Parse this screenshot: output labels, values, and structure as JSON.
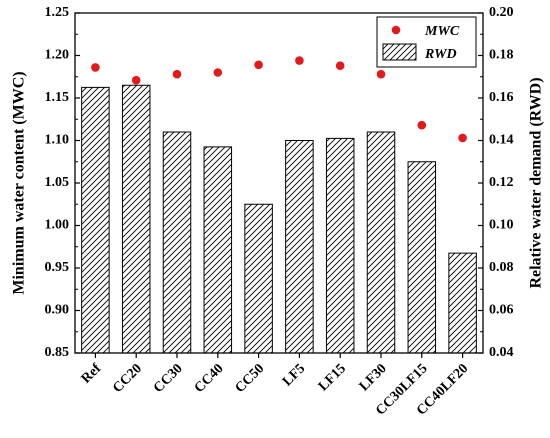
{
  "chart_data": {
    "type": "bar",
    "categories": [
      "Ref",
      "CC20",
      "CC30",
      "CC40",
      "CC50",
      "LF5",
      "LF15",
      "LF30",
      "CC30LF15",
      "CC40LF20"
    ],
    "series": [
      {
        "name": "RWD",
        "type": "bar",
        "axis": "right",
        "values": [
          0.165,
          0.166,
          0.144,
          0.137,
          0.11,
          0.14,
          0.141,
          0.144,
          0.13,
          0.087
        ]
      },
      {
        "name": "MWC",
        "type": "scatter",
        "axis": "left",
        "values": [
          1.186,
          1.171,
          1.178,
          1.18,
          1.189,
          1.194,
          1.188,
          1.178,
          1.118,
          1.103
        ]
      }
    ],
    "ylabel_left": "Minimum water content (MWC)",
    "ylabel_right": "Relative water demand (RWD)",
    "ylim_left": [
      0.85,
      1.25
    ],
    "ylim_right": [
      0.04,
      0.2
    ],
    "yticks_left": [
      "0.85",
      "0.90",
      "0.95",
      "1.00",
      "1.05",
      "1.10",
      "1.15",
      "1.20",
      "1.25"
    ],
    "yticks_right": [
      "0.04",
      "0.06",
      "0.08",
      "0.10",
      "0.12",
      "0.14",
      "0.16",
      "0.18",
      "0.20"
    ],
    "legend_position": "top-right",
    "grid": false,
    "colors": {
      "MWC": "#e31a1c",
      "RWD_hatch": "#000000"
    }
  }
}
